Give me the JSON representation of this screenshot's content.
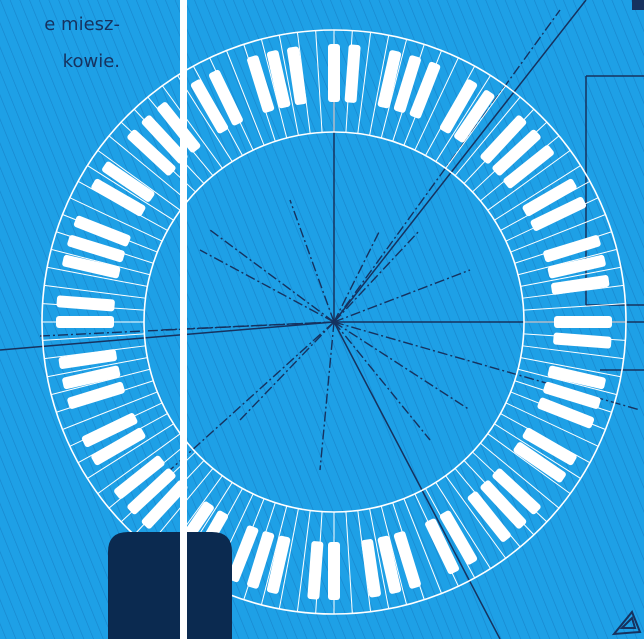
{
  "text_fragment": {
    "line1": "e miesz-",
    "line2": "kowie."
  },
  "colors": {
    "background": "#1ea0e6",
    "hatch": "#1a7fc0",
    "lines": "#16325f",
    "keys": "#ffffff",
    "panel": "#0b2a50"
  },
  "piano_ring": {
    "black_key_count": 60
  }
}
